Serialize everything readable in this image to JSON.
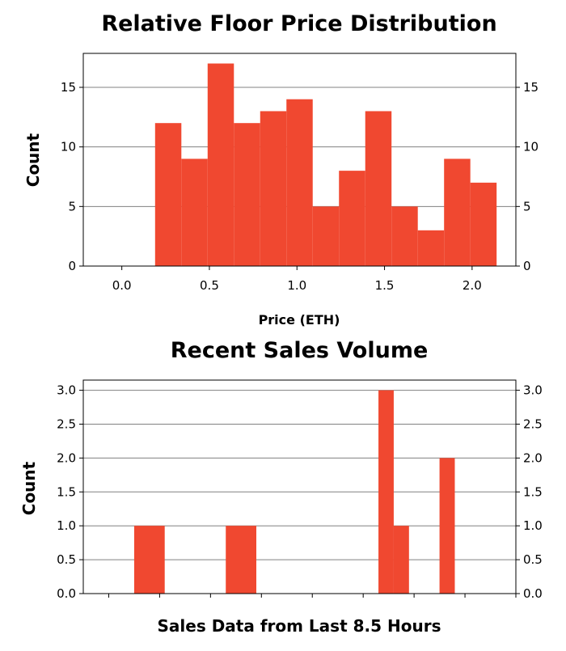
{
  "colors": {
    "bar": "#f04830",
    "grid": "#808080",
    "frame": "#000000"
  },
  "chart_data": [
    {
      "type": "bar",
      "title": "Relative Floor Price Distribution",
      "xlabel": "Price (ETH)",
      "ylabel": "Count",
      "xlim": [
        -0.22,
        2.25
      ],
      "ylim": [
        0,
        17.85
      ],
      "xticks": [
        0.0,
        0.5,
        1.0,
        1.5,
        2.0
      ],
      "xtick_labels": [
        "0.0",
        "0.5",
        "1.0",
        "1.5",
        "2.0"
      ],
      "yticks": [
        0,
        5,
        10,
        15
      ],
      "ytick_labels": [
        "0",
        "5",
        "10",
        "15"
      ],
      "grid": "y",
      "bins": [
        {
          "x0": 0.19,
          "x1": 0.34,
          "count": 12
        },
        {
          "x0": 0.34,
          "x1": 0.49,
          "count": 9
        },
        {
          "x0": 0.49,
          "x1": 0.64,
          "count": 17
        },
        {
          "x0": 0.64,
          "x1": 0.79,
          "count": 12
        },
        {
          "x0": 0.79,
          "x1": 0.94,
          "count": 13
        },
        {
          "x0": 0.94,
          "x1": 1.09,
          "count": 14
        },
        {
          "x0": 1.09,
          "x1": 1.24,
          "count": 5
        },
        {
          "x0": 1.24,
          "x1": 1.39,
          "count": 8
        },
        {
          "x0": 1.39,
          "x1": 1.54,
          "count": 13
        },
        {
          "x0": 1.54,
          "x1": 1.69,
          "count": 5
        },
        {
          "x0": 1.69,
          "x1": 1.84,
          "count": 3
        },
        {
          "x0": 1.84,
          "x1": 1.99,
          "count": 9
        },
        {
          "x0": 1.99,
          "x1": 2.14,
          "count": 7
        }
      ]
    },
    {
      "type": "bar",
      "title": "Recent Sales Volume",
      "xlabel": "Sales Data from Last 8.5 Hours",
      "ylabel": "Count",
      "xlim": [
        0,
        8.5
      ],
      "ylim": [
        0,
        3.15
      ],
      "xticks": [
        0.5,
        1.5,
        2.5,
        3.5,
        4.5,
        5.5,
        6.5,
        7.5,
        8.5
      ],
      "xtick_labels": [],
      "yticks": [
        0.0,
        0.5,
        1.0,
        1.5,
        2.0,
        2.5,
        3.0
      ],
      "ytick_labels": [
        "0.0",
        "0.5",
        "1.0",
        "1.5",
        "2.0",
        "2.5",
        "3.0"
      ],
      "grid": "y",
      "bins": [
        {
          "x0": 1.0,
          "x1": 1.6,
          "count": 1
        },
        {
          "x0": 2.8,
          "x1": 3.4,
          "count": 1
        },
        {
          "x0": 5.8,
          "x1": 6.1,
          "count": 3
        },
        {
          "x0": 6.1,
          "x1": 6.4,
          "count": 1
        },
        {
          "x0": 7.0,
          "x1": 7.3,
          "count": 2
        }
      ]
    }
  ]
}
